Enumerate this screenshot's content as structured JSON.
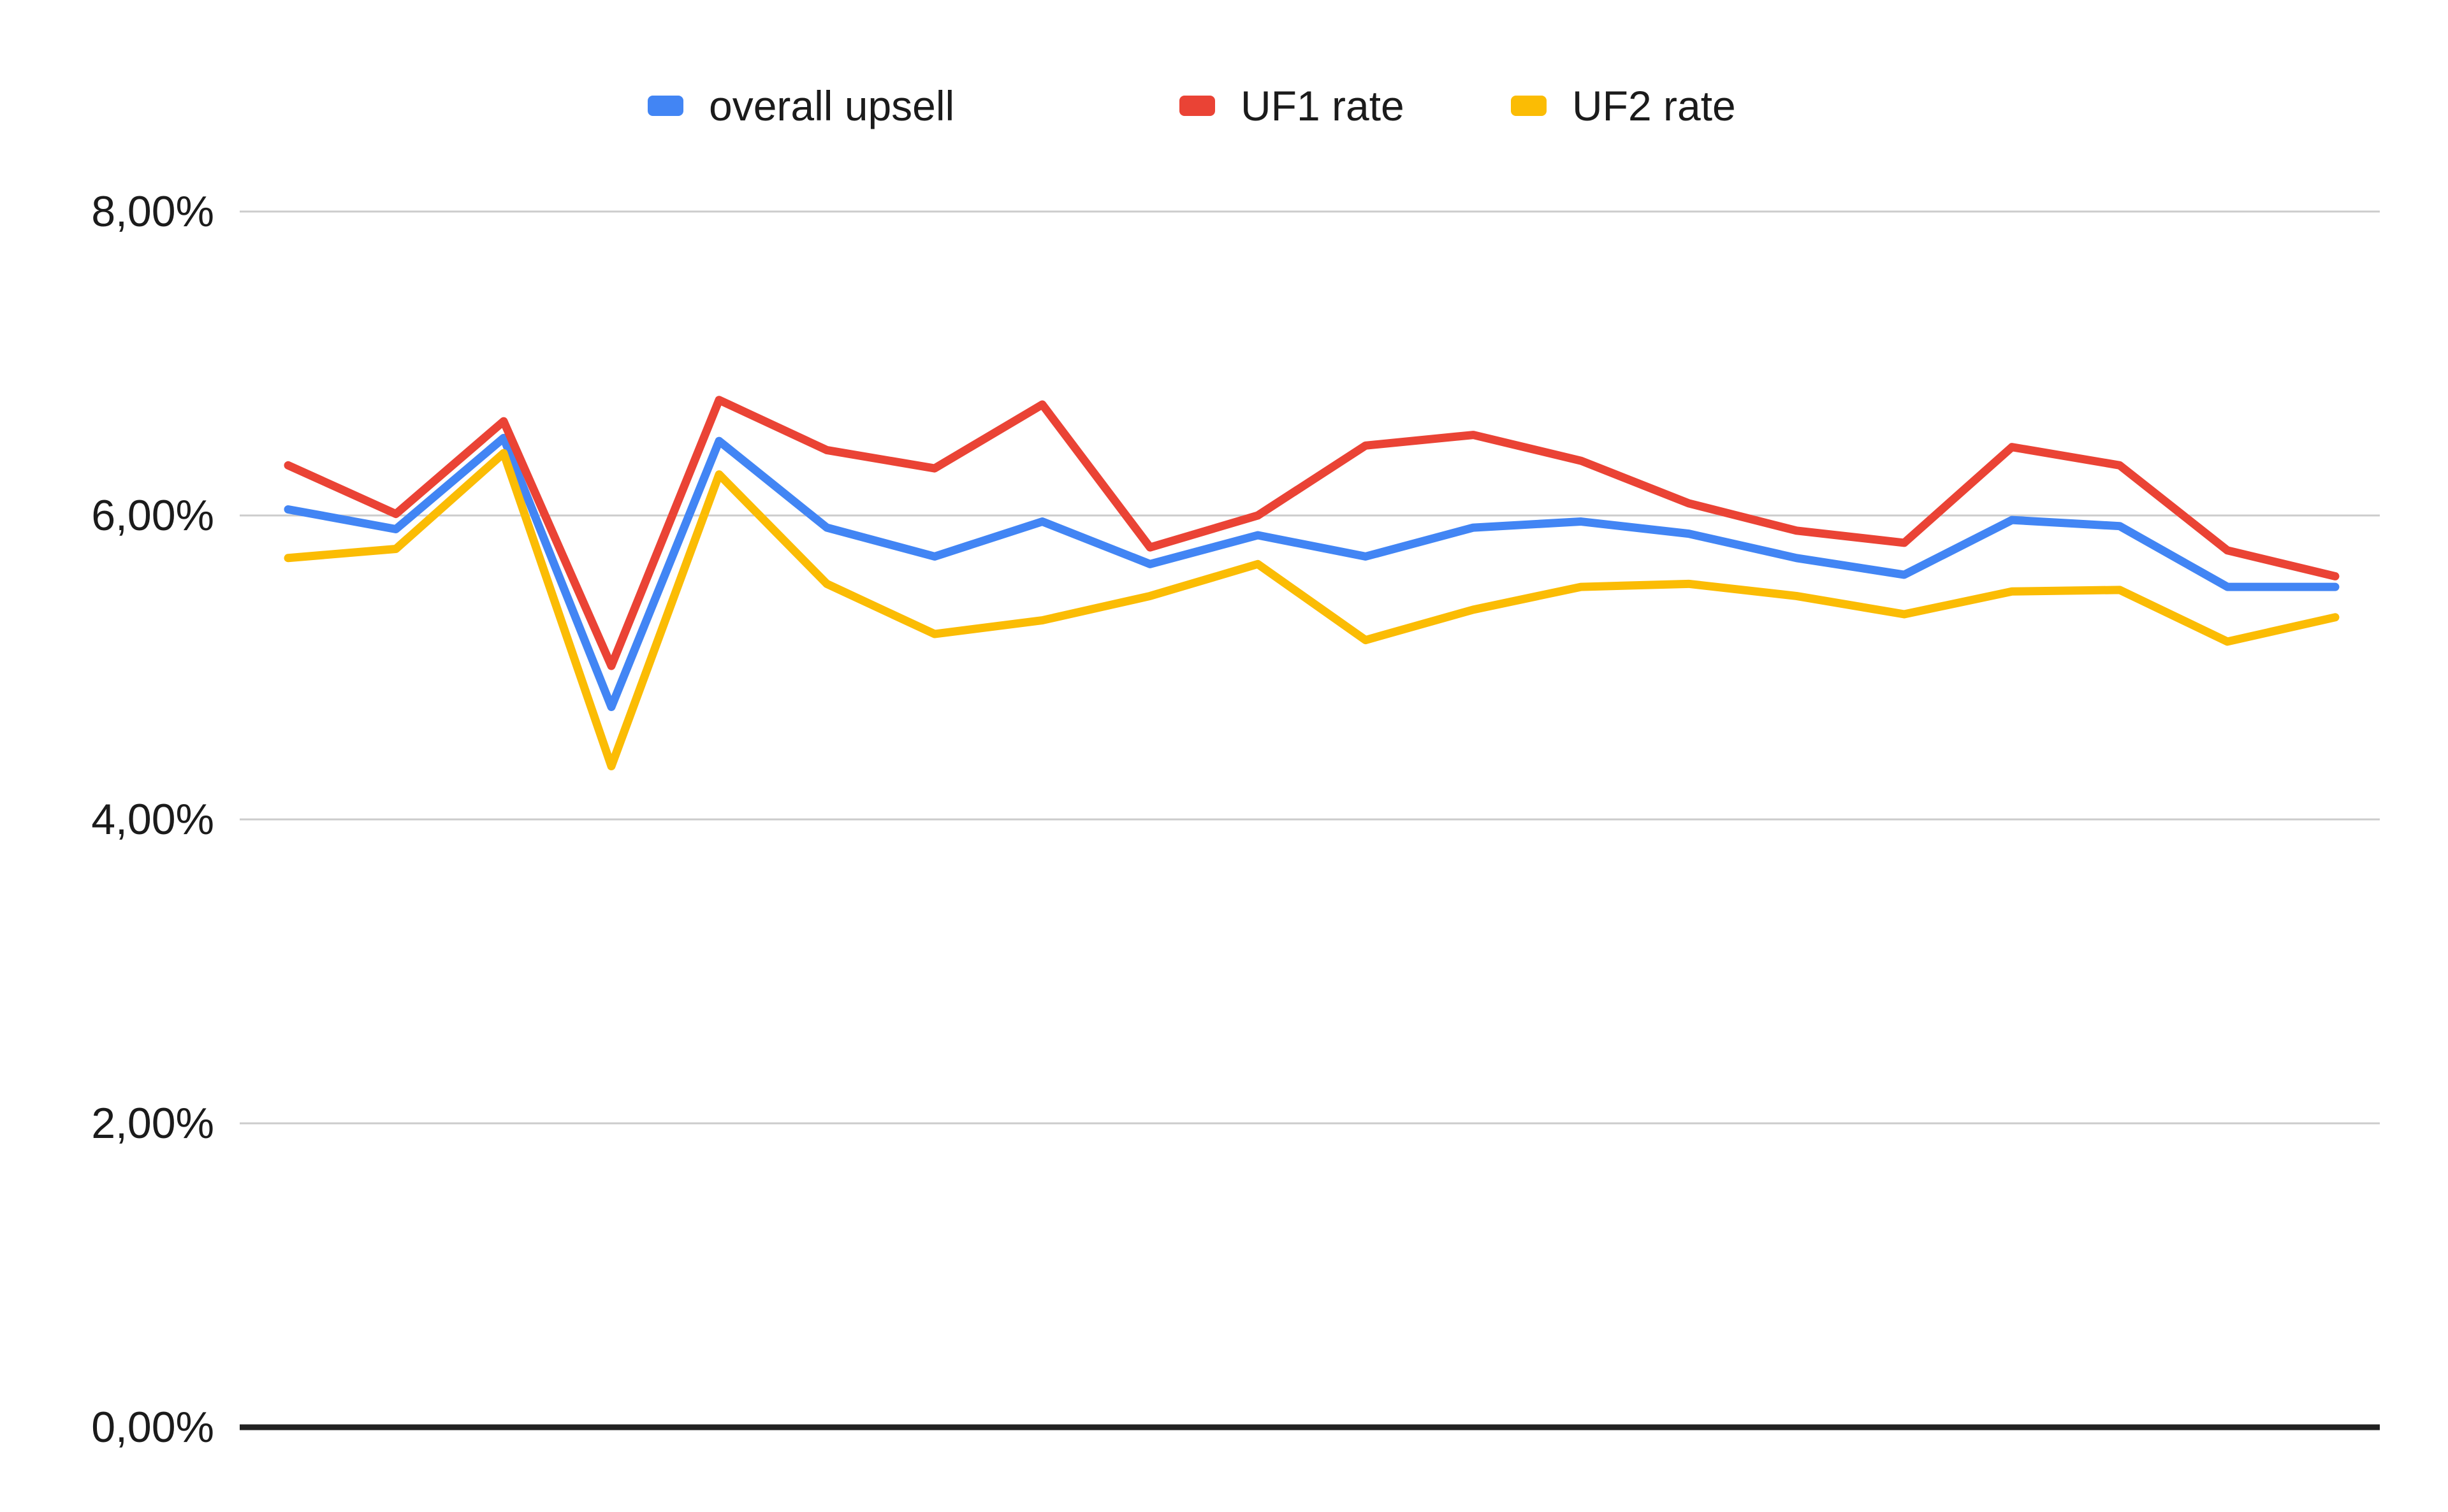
{
  "chart_data": {
    "type": "line",
    "title": "",
    "units": "percent",
    "decimal_separator": ",",
    "x_labels": [],
    "x_labels_visible": false,
    "points_per_series": 20,
    "grid": true,
    "legend_position": "top",
    "y_axis": {
      "range_percent": [
        0,
        8
      ],
      "tick_interval_percent": 2,
      "ticks_top_to_bottom": [
        "8,00%",
        "6,00%",
        "4,00%",
        "2,00%",
        "0,00%"
      ]
    },
    "series": [
      {
        "name": "overall upsell",
        "color": "#4285F4",
        "values": [
          6.04,
          5.91,
          6.51,
          4.74,
          6.49,
          5.92,
          5.73,
          5.96,
          5.68,
          5.87,
          5.73,
          5.92,
          5.96,
          5.88,
          5.72,
          5.61,
          5.97,
          5.93,
          5.53,
          5.53
        ]
      },
      {
        "name": "UF1 rate",
        "color": "#EA4335",
        "values": [
          6.33,
          6.01,
          6.62,
          5.01,
          6.76,
          6.43,
          6.31,
          6.73,
          5.79,
          6.0,
          6.46,
          6.53,
          6.36,
          6.08,
          5.9,
          5.82,
          6.45,
          6.33,
          5.77,
          5.6
        ]
      },
      {
        "name": "UF2 rate",
        "color": "#FBBC04",
        "values": [
          5.72,
          5.78,
          6.41,
          4.35,
          6.27,
          5.55,
          5.22,
          5.31,
          5.47,
          5.68,
          5.18,
          5.38,
          5.53,
          5.55,
          5.47,
          5.35,
          5.5,
          5.51,
          5.17,
          5.33
        ]
      }
    ],
    "style": {
      "gridline_color": "#cccccc",
      "axis_line_color": "#212121",
      "background_color": "#ffffff",
      "text_color": "#1b1b1b"
    }
  }
}
